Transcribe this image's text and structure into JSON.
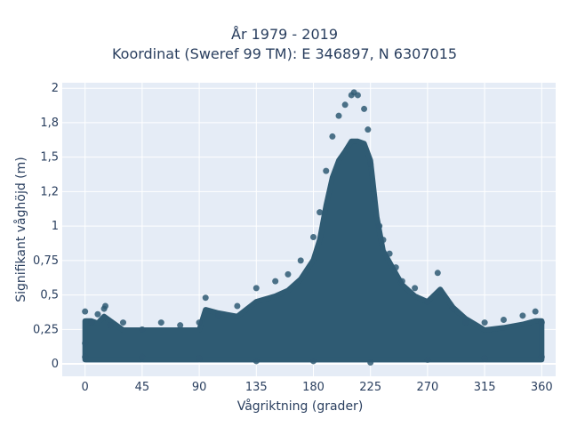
{
  "chart_data": {
    "type": "scatter",
    "title": "År 1979 - 2019",
    "subtitle": "Koordinat (Sweref 99 TM): E 346897, N 6307015",
    "xlabel": "Vågriktning (grader)",
    "ylabel": "Signifikant våghöjd (m)",
    "xlim": [
      -18,
      371
    ],
    "ylim": [
      -0.09,
      2.04
    ],
    "x_ticks": [
      0,
      45,
      90,
      135,
      180,
      225,
      270,
      315,
      360
    ],
    "x_tick_labels": [
      "0",
      "45",
      "90",
      "135",
      "180",
      "225",
      "270",
      "315",
      "360"
    ],
    "y_ticks": [
      0,
      0.25,
      0.5,
      0.75,
      1.0,
      1.25,
      1.5,
      1.75,
      2.0
    ],
    "y_tick_labels": [
      "0",
      "0,25",
      "0,5",
      "0,75",
      "1",
      "1,2",
      "1,5",
      "1,8",
      "2"
    ],
    "grid": true,
    "marker_color": "#2f5b73",
    "plot_background": "#e5ecf6",
    "series": [
      {
        "points": [
          [
            0,
            0.15
          ],
          [
            0,
            0.38
          ],
          [
            5,
            0.3
          ],
          [
            10,
            0.36
          ],
          [
            15,
            0.4
          ],
          [
            16,
            0.42
          ],
          [
            20,
            0.28
          ],
          [
            30,
            0.3
          ],
          [
            45,
            0.25
          ],
          [
            60,
            0.3
          ],
          [
            75,
            0.28
          ],
          [
            90,
            0.3
          ],
          [
            95,
            0.48
          ],
          [
            105,
            0.35
          ],
          [
            120,
            0.42
          ],
          [
            135,
            0.55
          ],
          [
            150,
            0.6
          ],
          [
            160,
            0.65
          ],
          [
            170,
            0.75
          ],
          [
            180,
            0.92
          ],
          [
            185,
            1.1
          ],
          [
            190,
            1.4
          ],
          [
            195,
            1.65
          ],
          [
            200,
            1.8
          ],
          [
            205,
            1.88
          ],
          [
            210,
            1.95
          ],
          [
            212,
            1.97
          ],
          [
            215,
            1.95
          ],
          [
            220,
            1.85
          ],
          [
            223,
            1.7
          ],
          [
            225,
            1.45
          ],
          [
            228,
            1.2
          ],
          [
            232,
            1.0
          ],
          [
            235,
            0.9
          ],
          [
            240,
            0.8
          ],
          [
            245,
            0.7
          ],
          [
            250,
            0.6
          ],
          [
            260,
            0.55
          ],
          [
            270,
            0.45
          ],
          [
            278,
            0.66
          ],
          [
            290,
            0.4
          ],
          [
            300,
            0.3
          ],
          [
            315,
            0.3
          ],
          [
            330,
            0.32
          ],
          [
            345,
            0.35
          ],
          [
            355,
            0.38
          ],
          [
            360,
            0.3
          ],
          [
            0,
            0.05
          ],
          [
            45,
            0.05
          ],
          [
            90,
            0.04
          ],
          [
            135,
            0.02
          ],
          [
            180,
            0.02
          ],
          [
            225,
            0.01
          ],
          [
            270,
            0.03
          ],
          [
            315,
            0.04
          ],
          [
            360,
            0.05
          ]
        ]
      }
    ]
  }
}
